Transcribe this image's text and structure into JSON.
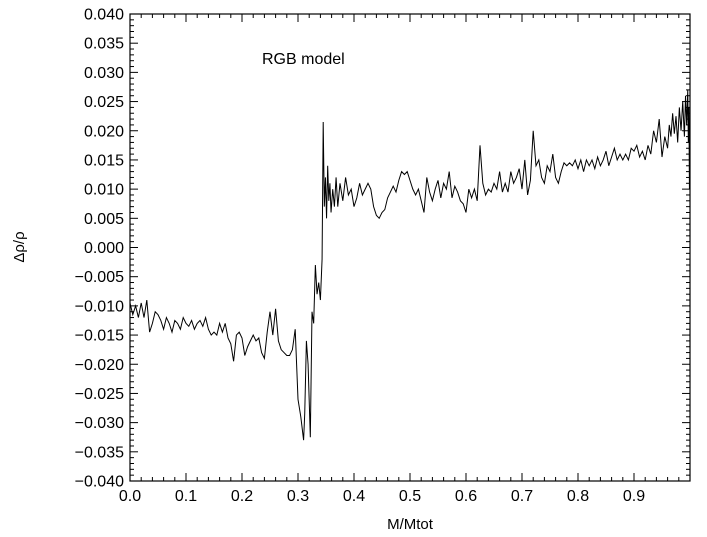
{
  "chart_data": {
    "type": "line",
    "title": "",
    "annotation": "RGB model",
    "xlabel": "M/Mtot",
    "ylabel": "Δρ/ρ",
    "xlim": [
      0,
      1
    ],
    "ylim": [
      -0.04,
      0.04
    ],
    "x_ticks": [
      "0.0",
      "0.1",
      "0.2",
      "0.3",
      "0.4",
      "0.5",
      "0.6",
      "0.7",
      "0.8",
      "0.9"
    ],
    "y_ticks": [
      "0.040",
      "0.035",
      "0.030",
      "0.025",
      "0.020",
      "0.015",
      "0.010",
      "0.005",
      "0.000",
      "−0.005",
      "−0.010",
      "−0.015",
      "−0.020",
      "−0.025",
      "−0.030",
      "−0.035",
      "−0.040"
    ],
    "grid": false,
    "series": [
      {
        "points": [
          [
            0.0,
            -0.0095
          ],
          [
            0.005,
            -0.0115
          ],
          [
            0.01,
            -0.01
          ],
          [
            0.015,
            -0.012
          ],
          [
            0.02,
            -0.0095
          ],
          [
            0.025,
            -0.012
          ],
          [
            0.03,
            -0.009
          ],
          [
            0.035,
            -0.0145
          ],
          [
            0.04,
            -0.013
          ],
          [
            0.045,
            -0.011
          ],
          [
            0.05,
            -0.0115
          ],
          [
            0.055,
            -0.0125
          ],
          [
            0.06,
            -0.014
          ],
          [
            0.065,
            -0.012
          ],
          [
            0.07,
            -0.013
          ],
          [
            0.075,
            -0.0145
          ],
          [
            0.08,
            -0.0125
          ],
          [
            0.085,
            -0.013
          ],
          [
            0.09,
            -0.014
          ],
          [
            0.095,
            -0.012
          ],
          [
            0.1,
            -0.013
          ],
          [
            0.105,
            -0.0135
          ],
          [
            0.11,
            -0.0125
          ],
          [
            0.115,
            -0.014
          ],
          [
            0.12,
            -0.013
          ],
          [
            0.125,
            -0.0125
          ],
          [
            0.13,
            -0.0135
          ],
          [
            0.135,
            -0.012
          ],
          [
            0.14,
            -0.014
          ],
          [
            0.145,
            -0.015
          ],
          [
            0.15,
            -0.0145
          ],
          [
            0.155,
            -0.015
          ],
          [
            0.16,
            -0.013
          ],
          [
            0.165,
            -0.0145
          ],
          [
            0.17,
            -0.013
          ],
          [
            0.175,
            -0.0155
          ],
          [
            0.18,
            -0.0165
          ],
          [
            0.185,
            -0.0195
          ],
          [
            0.19,
            -0.015
          ],
          [
            0.195,
            -0.0145
          ],
          [
            0.2,
            -0.0155
          ],
          [
            0.205,
            -0.0185
          ],
          [
            0.21,
            -0.017
          ],
          [
            0.215,
            -0.016
          ],
          [
            0.22,
            -0.015
          ],
          [
            0.225,
            -0.016
          ],
          [
            0.23,
            -0.0155
          ],
          [
            0.235,
            -0.018
          ],
          [
            0.24,
            -0.019
          ],
          [
            0.245,
            -0.0145
          ],
          [
            0.25,
            -0.011
          ],
          [
            0.255,
            -0.015
          ],
          [
            0.26,
            -0.0105
          ],
          [
            0.265,
            -0.016
          ],
          [
            0.27,
            -0.0175
          ],
          [
            0.275,
            -0.018
          ],
          [
            0.28,
            -0.0185
          ],
          [
            0.285,
            -0.0185
          ],
          [
            0.29,
            -0.0175
          ],
          [
            0.295,
            -0.014
          ],
          [
            0.3,
            -0.026
          ],
          [
            0.305,
            -0.029
          ],
          [
            0.31,
            -0.033
          ],
          [
            0.312,
            -0.0285
          ],
          [
            0.315,
            -0.016
          ],
          [
            0.318,
            -0.02
          ],
          [
            0.322,
            -0.0325
          ],
          [
            0.325,
            -0.011
          ],
          [
            0.328,
            -0.013
          ],
          [
            0.331,
            -0.003
          ],
          [
            0.334,
            -0.008
          ],
          [
            0.337,
            -0.006
          ],
          [
            0.34,
            -0.009
          ],
          [
            0.343,
            -0.002
          ],
          [
            0.345,
            0.0215
          ],
          [
            0.347,
            0.007
          ],
          [
            0.349,
            0.012
          ],
          [
            0.351,
            0.005
          ],
          [
            0.353,
            0.014
          ],
          [
            0.355,
            0.008
          ],
          [
            0.357,
            0.011
          ],
          [
            0.359,
            0.006
          ],
          [
            0.362,
            0.01
          ],
          [
            0.365,
            0.007
          ],
          [
            0.368,
            0.012
          ],
          [
            0.371,
            0.007
          ],
          [
            0.375,
            0.011
          ],
          [
            0.38,
            0.008
          ],
          [
            0.385,
            0.012
          ],
          [
            0.39,
            0.009
          ],
          [
            0.395,
            0.01
          ],
          [
            0.4,
            0.007
          ],
          [
            0.405,
            0.0085
          ],
          [
            0.41,
            0.011
          ],
          [
            0.415,
            0.009
          ],
          [
            0.42,
            0.01
          ],
          [
            0.425,
            0.011
          ],
          [
            0.43,
            0.01
          ],
          [
            0.435,
            0.007
          ],
          [
            0.44,
            0.0055
          ],
          [
            0.445,
            0.005
          ],
          [
            0.45,
            0.006
          ],
          [
            0.455,
            0.0065
          ],
          [
            0.46,
            0.0085
          ],
          [
            0.465,
            0.0095
          ],
          [
            0.47,
            0.0105
          ],
          [
            0.475,
            0.0095
          ],
          [
            0.48,
            0.0115
          ],
          [
            0.485,
            0.013
          ],
          [
            0.49,
            0.0125
          ],
          [
            0.495,
            0.013
          ],
          [
            0.5,
            0.0115
          ],
          [
            0.505,
            0.01
          ],
          [
            0.51,
            0.009
          ],
          [
            0.515,
            0.01
          ],
          [
            0.52,
            0.008
          ],
          [
            0.525,
            0.006
          ],
          [
            0.53,
            0.012
          ],
          [
            0.535,
            0.0095
          ],
          [
            0.54,
            0.008
          ],
          [
            0.545,
            0.01
          ],
          [
            0.55,
            0.0115
          ],
          [
            0.555,
            0.0085
          ],
          [
            0.56,
            0.011
          ],
          [
            0.565,
            0.01
          ],
          [
            0.57,
            0.013
          ],
          [
            0.575,
            0.0085
          ],
          [
            0.58,
            0.0105
          ],
          [
            0.585,
            0.0095
          ],
          [
            0.59,
            0.008
          ],
          [
            0.595,
            0.0075
          ],
          [
            0.6,
            0.006
          ],
          [
            0.605,
            0.01
          ],
          [
            0.61,
            0.0085
          ],
          [
            0.615,
            0.01
          ],
          [
            0.62,
            0.008
          ],
          [
            0.625,
            0.0175
          ],
          [
            0.63,
            0.011
          ],
          [
            0.635,
            0.009
          ],
          [
            0.64,
            0.01
          ],
          [
            0.645,
            0.0095
          ],
          [
            0.65,
            0.011
          ],
          [
            0.655,
            0.01
          ],
          [
            0.66,
            0.013
          ],
          [
            0.665,
            0.0095
          ],
          [
            0.67,
            0.011
          ],
          [
            0.675,
            0.0095
          ],
          [
            0.68,
            0.013
          ],
          [
            0.685,
            0.011
          ],
          [
            0.69,
            0.012
          ],
          [
            0.695,
            0.0135
          ],
          [
            0.7,
            0.01
          ],
          [
            0.705,
            0.015
          ],
          [
            0.71,
            0.009
          ],
          [
            0.715,
            0.0115
          ],
          [
            0.72,
            0.02
          ],
          [
            0.725,
            0.014
          ],
          [
            0.73,
            0.015
          ],
          [
            0.735,
            0.012
          ],
          [
            0.74,
            0.011
          ],
          [
            0.745,
            0.014
          ],
          [
            0.75,
            0.013
          ],
          [
            0.755,
            0.016
          ],
          [
            0.76,
            0.012
          ],
          [
            0.765,
            0.011
          ],
          [
            0.77,
            0.013
          ],
          [
            0.775,
            0.0145
          ],
          [
            0.78,
            0.014
          ],
          [
            0.785,
            0.0145
          ],
          [
            0.79,
            0.014
          ],
          [
            0.795,
            0.015
          ],
          [
            0.8,
            0.0135
          ],
          [
            0.805,
            0.015
          ],
          [
            0.81,
            0.013
          ],
          [
            0.815,
            0.015
          ],
          [
            0.82,
            0.014
          ],
          [
            0.825,
            0.015
          ],
          [
            0.83,
            0.0135
          ],
          [
            0.835,
            0.0155
          ],
          [
            0.84,
            0.014
          ],
          [
            0.845,
            0.015
          ],
          [
            0.85,
            0.0165
          ],
          [
            0.855,
            0.014
          ],
          [
            0.86,
            0.0155
          ],
          [
            0.865,
            0.017
          ],
          [
            0.87,
            0.015
          ],
          [
            0.875,
            0.016
          ],
          [
            0.88,
            0.015
          ],
          [
            0.885,
            0.016
          ],
          [
            0.89,
            0.015
          ],
          [
            0.895,
            0.017
          ],
          [
            0.9,
            0.0165
          ],
          [
            0.905,
            0.0175
          ],
          [
            0.91,
            0.0155
          ],
          [
            0.915,
            0.0165
          ],
          [
            0.92,
            0.015
          ],
          [
            0.925,
            0.0175
          ],
          [
            0.93,
            0.016
          ],
          [
            0.935,
            0.02
          ],
          [
            0.94,
            0.018
          ],
          [
            0.945,
            0.022
          ],
          [
            0.95,
            0.0155
          ],
          [
            0.955,
            0.019
          ],
          [
            0.96,
            0.017
          ],
          [
            0.963,
            0.021
          ],
          [
            0.966,
            0.019
          ],
          [
            0.969,
            0.023
          ],
          [
            0.972,
            0.0195
          ],
          [
            0.975,
            0.0225
          ],
          [
            0.978,
            0.018
          ],
          [
            0.981,
            0.024
          ],
          [
            0.984,
            0.02
          ],
          [
            0.987,
            0.025
          ],
          [
            0.99,
            0.019
          ],
          [
            0.992,
            0.026
          ],
          [
            0.994,
            0.021
          ],
          [
            0.996,
            0.027
          ],
          [
            0.997,
            0.018
          ],
          [
            0.998,
            0.024
          ],
          [
            0.999,
            0.01
          ],
          [
            1.0,
            0.015
          ]
        ]
      }
    ]
  }
}
